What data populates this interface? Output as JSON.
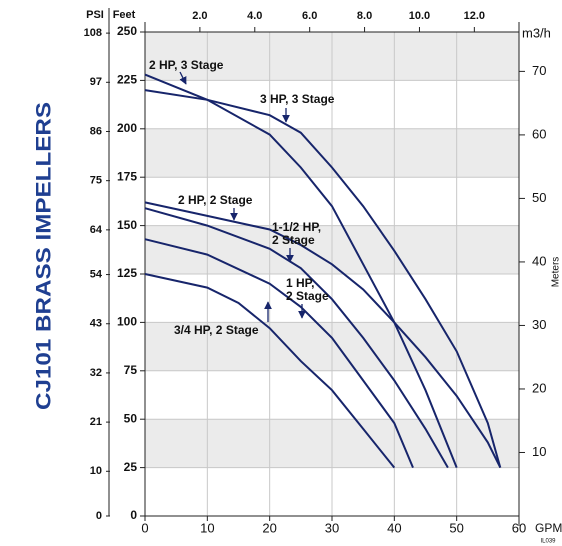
{
  "chart_data": {
    "type": "line",
    "title": "CJ101 BRASS IMPELLERS",
    "x_label": "GPM",
    "y_label": "Feet",
    "y3_label": "PSI",
    "y2_label": "Meters",
    "x2_label": "m3/h",
    "code": "IL039",
    "xlim": [
      0,
      60
    ],
    "xticks": [
      0,
      10,
      20,
      30,
      40,
      50,
      60
    ],
    "ylim": [
      0,
      250
    ],
    "yticks": [
      0,
      25,
      50,
      75,
      100,
      125,
      150,
      175,
      200,
      225,
      250
    ],
    "y3lim": [
      0,
      108.25
    ],
    "y3ticks": [
      0,
      10,
      21,
      32,
      43,
      54,
      64,
      75,
      86,
      97,
      108
    ],
    "y2lim": [
      0,
      76.2
    ],
    "y2ticks": [
      10,
      20,
      30,
      40,
      50,
      60,
      70
    ],
    "x2lim": [
      0,
      13.627
    ],
    "x2ticks": [
      {
        "value": 2,
        "label": "2.0"
      },
      {
        "value": 4,
        "label": "4.0"
      },
      {
        "value": 6,
        "label": "6.0"
      },
      {
        "value": 8,
        "label": "8.0"
      },
      {
        "value": 10,
        "label": "10.0"
      },
      {
        "value": 12,
        "label": "12.0"
      }
    ],
    "grid": true,
    "series": [
      {
        "name": "3 HP, 3 Stage",
        "color": "#17256b",
        "x": [
          0,
          10,
          20,
          25,
          30,
          35,
          40,
          45,
          50,
          55,
          57
        ],
        "values": [
          220,
          215,
          207,
          198,
          180,
          160,
          137,
          112,
          85,
          48,
          25
        ]
      },
      {
        "name": "2 HP, 3 Stage",
        "color": "#17256b",
        "x": [
          0,
          10,
          20,
          25,
          30,
          35,
          40,
          45,
          50
        ],
        "values": [
          228,
          215,
          197,
          180,
          160,
          130,
          100,
          65,
          25
        ]
      },
      {
        "name": "2 HP, 2 Stage",
        "color": "#17256b",
        "x": [
          0,
          10,
          20,
          25,
          30,
          35,
          40,
          45,
          50,
          55,
          57
        ],
        "values": [
          162,
          155,
          148,
          140,
          130,
          117,
          100,
          82,
          62,
          38,
          25
        ]
      },
      {
        "name": [
          "1-1/2 HP,",
          "2 Stage"
        ],
        "color": "#17256b",
        "x": [
          0,
          10,
          20,
          25,
          30,
          35,
          40,
          45,
          48.6
        ],
        "values": [
          159,
          150,
          138,
          128,
          112,
          92,
          70,
          45,
          25
        ]
      },
      {
        "name": [
          "1 HP,",
          "2 Stage"
        ],
        "color": "#17256b",
        "x": [
          0,
          10,
          20,
          25,
          30,
          35,
          40,
          43
        ],
        "values": [
          143,
          135,
          120,
          108,
          92,
          70,
          48,
          25
        ]
      },
      {
        "name": "3/4 HP, 2 Stage",
        "color": "#17256b",
        "x": [
          0,
          10,
          15,
          20,
          25,
          30,
          35,
          40
        ],
        "values": [
          125,
          118,
          110,
          97,
          80,
          65,
          45,
          25
        ]
      }
    ]
  }
}
